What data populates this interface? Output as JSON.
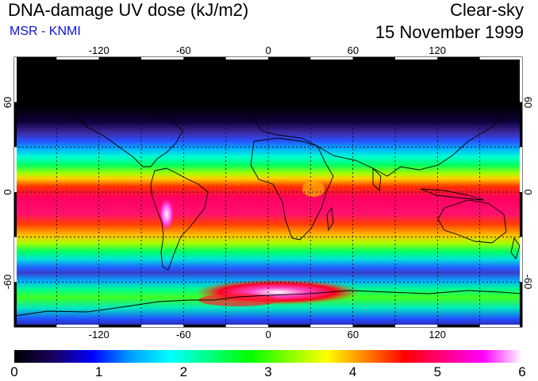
{
  "header": {
    "title": "DNA-damage UV dose (kJ/m2)",
    "source": "MSR - KNMI",
    "condition": "Clear-sky",
    "date": "15 November 1999"
  },
  "map": {
    "projection": "equirectangular",
    "lon_range": [
      -180,
      180
    ],
    "lat_range": [
      -90,
      90
    ],
    "lon_ticks": [
      -120,
      -60,
      0,
      60,
      120
    ],
    "lat_ticks": [
      60,
      0,
      -60
    ],
    "grid_spacing_deg": 30,
    "grid": "dashed"
  },
  "colorbar": {
    "min": 0,
    "max": 6,
    "ticks": [
      "0",
      "1",
      "2",
      "3",
      "4",
      "5",
      "6"
    ],
    "colors": [
      "#000000",
      "#1a0060",
      "#0000ff",
      "#00a0ff",
      "#00ffff",
      "#00ff80",
      "#00ff00",
      "#80ff00",
      "#ffff00",
      "#ff8000",
      "#ff0000",
      "#ff0080",
      "#ff00ff",
      "#ffffff"
    ]
  }
}
